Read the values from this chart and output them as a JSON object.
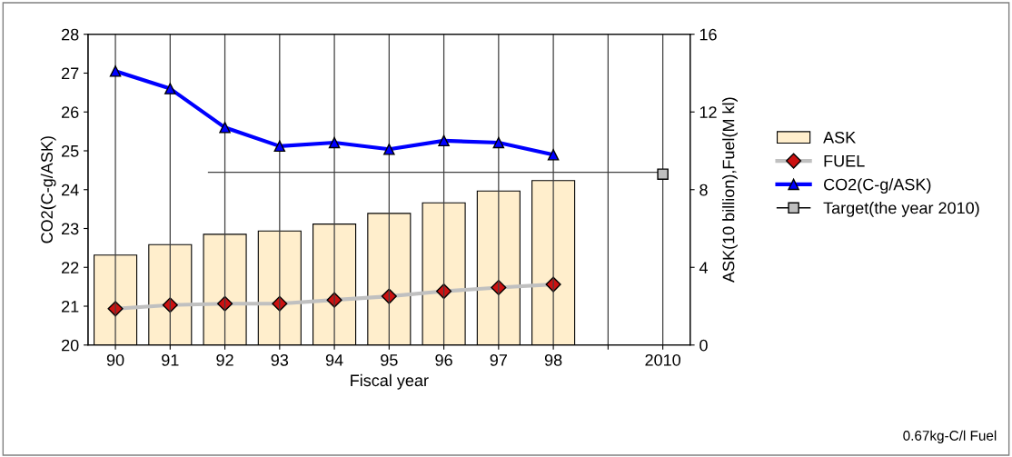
{
  "chart_data": {
    "type": "bar",
    "categories": [
      "90",
      "91",
      "92",
      "93",
      "94",
      "95",
      "96",
      "97",
      "98",
      null,
      "2010"
    ],
    "xlabel": "Fiscal year",
    "ylabel": "CO2(C-g/ASK)",
    "y2label": "ASK(10 billion),Fuel(M kl)",
    "ylim": [
      20,
      28
    ],
    "yticks": [
      20,
      21,
      22,
      23,
      24,
      25,
      26,
      27,
      28
    ],
    "y2lim": [
      0,
      16
    ],
    "y2ticks": [
      0,
      4,
      8,
      12,
      16
    ],
    "grid": "x",
    "legend": "right",
    "series": [
      {
        "name": "ASK",
        "axis": "y2",
        "color": "#ffeecc",
        "values": [
          4.63,
          5.17,
          5.7,
          5.87,
          6.23,
          6.78,
          7.32,
          7.93,
          8.47,
          null,
          null
        ]
      },
      {
        "name": "FUEL",
        "type": "line",
        "axis": "y2",
        "color": "#c0c0c0",
        "marker": "diamond",
        "colors": [
          "#cc1111",
          "#cc1111",
          "#cc1111",
          "#cc1111",
          "#cc1111",
          "#cc1111",
          "#cc1111",
          "#cc1111",
          "#cc1111",
          null,
          null
        ],
        "values": [
          1.87,
          2.06,
          2.13,
          2.13,
          2.32,
          2.51,
          2.77,
          2.96,
          3.12,
          null,
          null
        ]
      },
      {
        "name": "CO2(C-g/ASK)",
        "type": "line",
        "color": "#0000ff",
        "marker": "triangle",
        "values": [
          27.05,
          26.6,
          25.6,
          25.12,
          25.21,
          25.04,
          25.26,
          25.21,
          24.9,
          null,
          null
        ]
      },
      {
        "name": "Target(the year 2010)",
        "type": "line",
        "color": "#000000",
        "marker": "square",
        "colors": [
          null,
          null,
          null,
          null,
          null,
          null,
          null,
          null,
          null,
          null,
          "#bfbfbf"
        ],
        "values": [
          null,
          null,
          null,
          null,
          null,
          null,
          null,
          null,
          null,
          null,
          24.4
        ]
      }
    ],
    "ref_lines": [
      {
        "axis": "y",
        "value": 24.45,
        "color": "#404040"
      }
    ],
    "annotations": [
      "0.67kg-C/l Fuel"
    ]
  }
}
